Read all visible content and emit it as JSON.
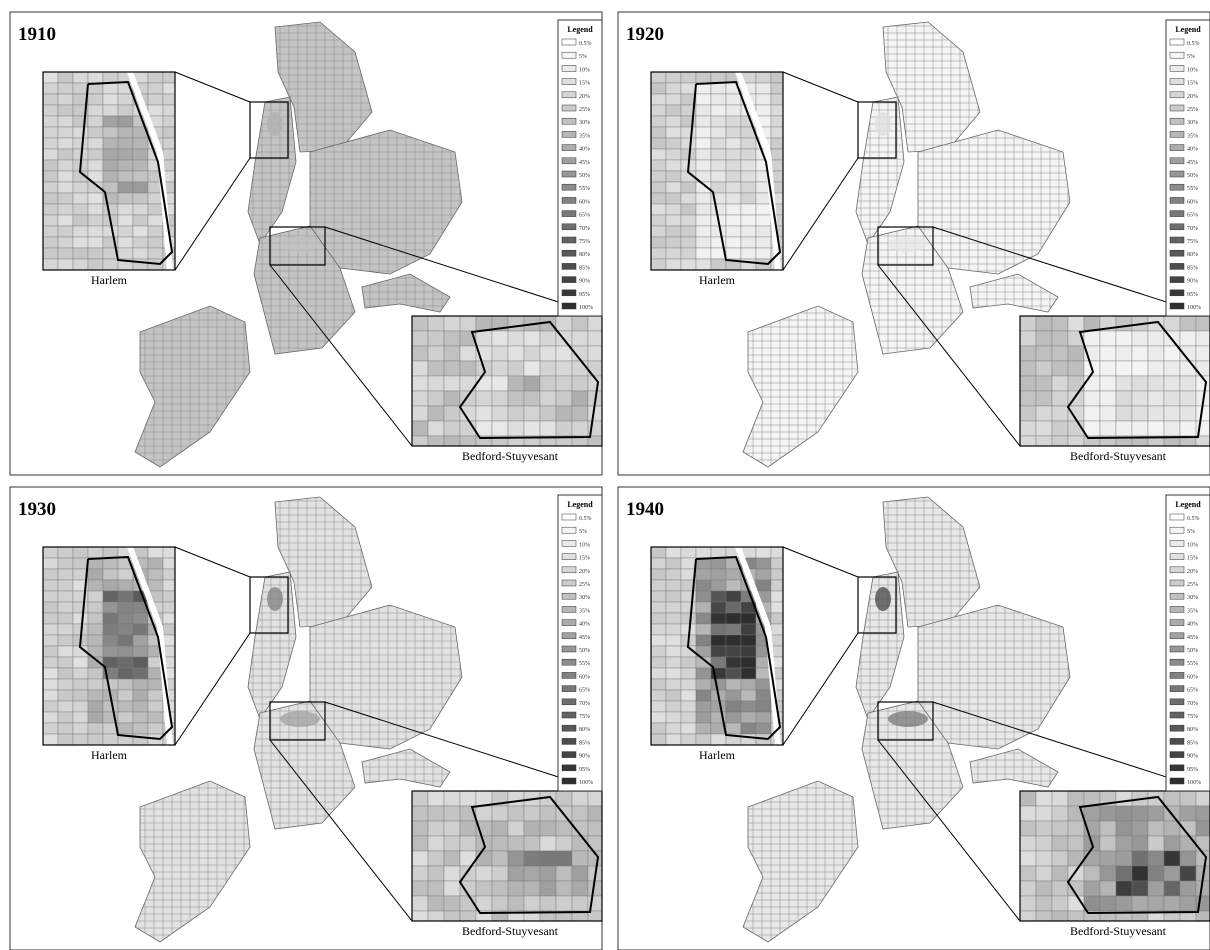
{
  "panels": [
    {
      "year": "1910",
      "legend": {
        "title": "Legend",
        "items": [
          "0.5%",
          "5%",
          "10%",
          "15%",
          "20%",
          "25%",
          "30%",
          "35%",
          "40%",
          "45%",
          "50%",
          "55%",
          "60%",
          "65%",
          "70%",
          "75%",
          "80%",
          "85%",
          "90%",
          "95%",
          "100%"
        ]
      },
      "insets": {
        "harlem": "Harlem",
        "bedstuy": "Bedford-Stuyvesant"
      }
    },
    {
      "year": "1920",
      "legend": {
        "title": "Legend",
        "items": [
          "0.5%",
          "5%",
          "10%",
          "15%",
          "20%",
          "25%",
          "30%",
          "35%",
          "40%",
          "45%",
          "50%",
          "55%",
          "60%",
          "65%",
          "70%",
          "75%",
          "80%",
          "85%",
          "90%",
          "95%",
          "100%"
        ]
      },
      "insets": {
        "harlem": "Harlem",
        "bedstuy": "Bedford-Stuyvesant"
      }
    },
    {
      "year": "1930",
      "legend": {
        "title": "Legend",
        "items": [
          "0.5%",
          "5%",
          "10%",
          "15%",
          "20%",
          "25%",
          "30%",
          "35%",
          "40%",
          "45%",
          "50%",
          "55%",
          "60%",
          "65%",
          "70%",
          "75%",
          "80%",
          "85%",
          "90%",
          "95%",
          "100%"
        ]
      },
      "insets": {
        "harlem": "Harlem",
        "bedstuy": "Bedford-Stuyvesant"
      }
    },
    {
      "year": "1940",
      "legend": {
        "title": "Legend",
        "items": [
          "0.5%",
          "5%",
          "10%",
          "15%",
          "20%",
          "25%",
          "30%",
          "35%",
          "40%",
          "45%",
          "50%",
          "55%",
          "60%",
          "65%",
          "70%",
          "75%",
          "80%",
          "85%",
          "90%",
          "95%",
          "100%"
        ]
      },
      "insets": {
        "harlem": "Harlem",
        "bedstuy": "Bedford-Stuyvesant"
      }
    }
  ]
}
